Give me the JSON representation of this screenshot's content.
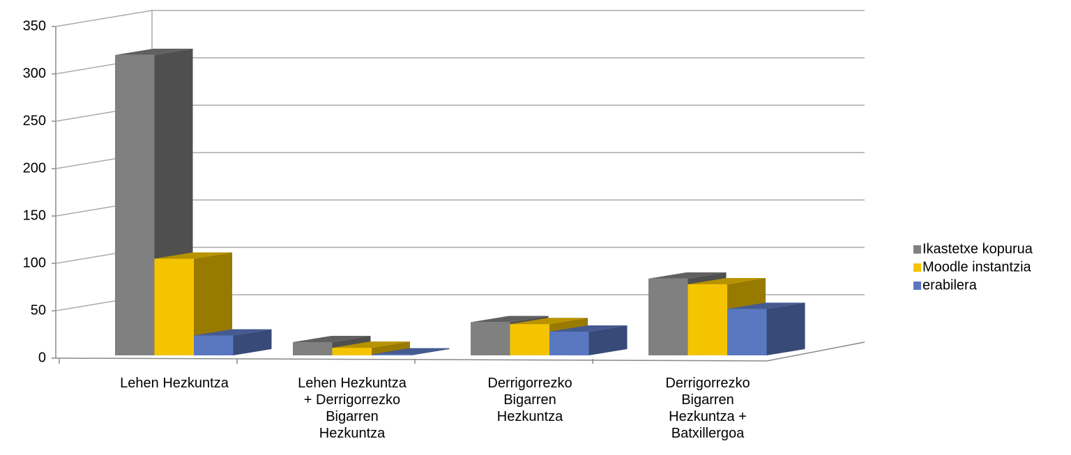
{
  "chart_data": {
    "type": "bar3d",
    "categories": [
      "Lehen Hezkuntza",
      "Lehen Hezkuntza + Derrigorrezko Bigarren Hezkuntza",
      "Derrigorrezko Bigarren Hezkuntza",
      "Derrigorrezko Bigarren Hezkuntza + Batxillergoa"
    ],
    "series": [
      {
        "name": "Ikastetxe kopurua",
        "color": "#808080",
        "values": [
          317,
          14,
          35,
          81
        ]
      },
      {
        "name": "Moodle instantzia",
        "color": "#f5c400",
        "values": [
          102,
          8,
          33,
          75
        ]
      },
      {
        "name": "erabilera",
        "color": "#5a78c0",
        "values": [
          21,
          1,
          25,
          49
        ]
      }
    ],
    "ylim": [
      0,
      350
    ],
    "yticks": [
      0,
      50,
      100,
      150,
      200,
      250,
      300,
      350
    ],
    "grid": true,
    "legend": "right"
  }
}
